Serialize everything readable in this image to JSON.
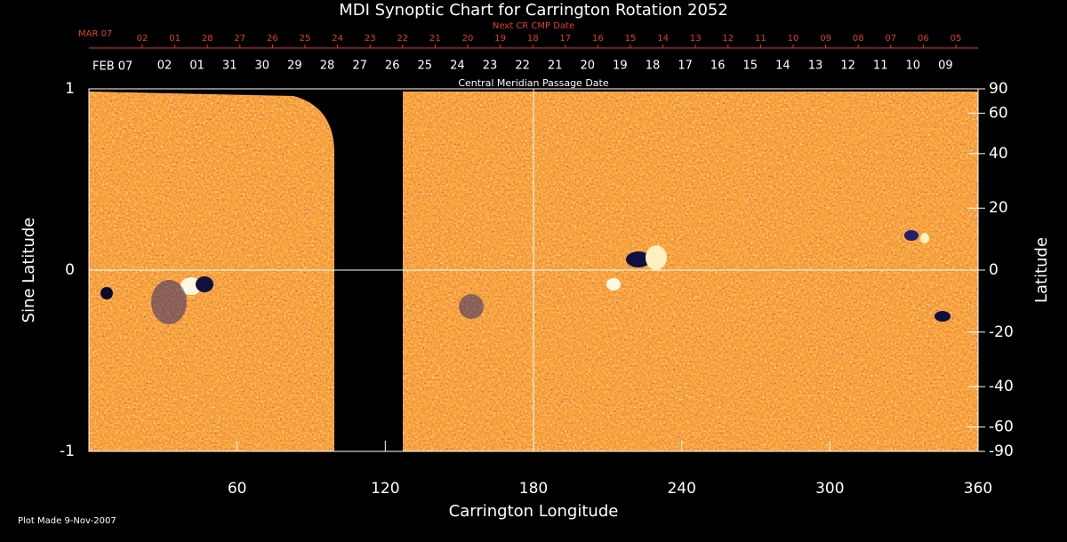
{
  "chart_data": {
    "type": "heatmap",
    "title": "MDI Synoptic Chart for Carrington Rotation 2052",
    "top_label": "Next CR CMP Date",
    "top_month": "MAR 07",
    "top_days": [
      "02",
      "01",
      "28",
      "27",
      "26",
      "25",
      "24",
      "23",
      "22",
      "21",
      "20",
      "19",
      "18",
      "17",
      "16",
      "15",
      "14",
      "13",
      "12",
      "11",
      "10",
      "09",
      "08",
      "07",
      "06",
      "05"
    ],
    "second_label": "Central Meridian Passage Date",
    "second_month": "FEB 07",
    "second_days": [
      "02",
      "01",
      "31",
      "30",
      "29",
      "28",
      "27",
      "26",
      "25",
      "24",
      "23",
      "22",
      "21",
      "20",
      "19",
      "18",
      "17",
      "16",
      "15",
      "14",
      "13",
      "12",
      "11",
      "10",
      "09"
    ],
    "x_label": "Carrington Longitude",
    "y_label": "Sine Latitude",
    "y2_label": "Latitude",
    "footnote": "Plot Made  9-Nov-2007",
    "xlim": [
      0,
      360
    ],
    "xticks": [
      60,
      120,
      180,
      240,
      300,
      360
    ],
    "ylim": [
      -1,
      1
    ],
    "yticks": [
      1,
      0,
      -1
    ],
    "y2lim": [
      -90,
      90
    ],
    "y2scale": "sine",
    "y2ticks": [
      90,
      60,
      40,
      20,
      0,
      -20,
      -40,
      -60,
      -90
    ],
    "crosshair_x": 180,
    "crosshair_y": 0
  }
}
